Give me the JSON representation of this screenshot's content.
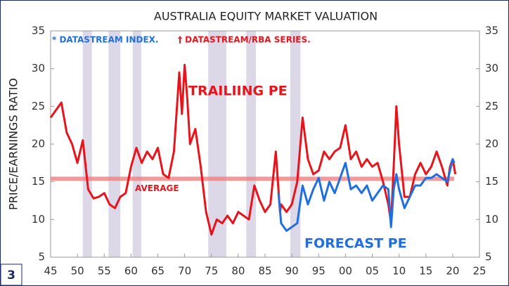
{
  "chart_data": {
    "type": "line",
    "title": "AUSTRALIA EQUITY MARKET VALUATION",
    "y_label": "PRICE/EARNINGS RATIO",
    "panel_label": "3",
    "annotations": {
      "forecast_note": "* DATASTREAM INDEX.",
      "trailing_note": "† DATASTREAM/RBA SERIES.",
      "trailing_label": "TRAILIING PE",
      "forecast_label": "FORECAST PE"
    },
    "xlim": [
      1945,
      2025
    ],
    "xticks": [
      {
        "value": 1945,
        "label": "45"
      },
      {
        "value": 1950,
        "label": "50"
      },
      {
        "value": 1955,
        "label": "55"
      },
      {
        "value": 1960,
        "label": "60"
      },
      {
        "value": 1965,
        "label": "65"
      },
      {
        "value": 1970,
        "label": "70"
      },
      {
        "value": 1975,
        "label": "75"
      },
      {
        "value": 1980,
        "label": "80"
      },
      {
        "value": 1985,
        "label": "85"
      },
      {
        "value": 1990,
        "label": "90"
      },
      {
        "value": 1995,
        "label": "95"
      },
      {
        "value": 2000,
        "label": "00"
      },
      {
        "value": 2005,
        "label": "05"
      },
      {
        "value": 2010,
        "label": "10"
      },
      {
        "value": 2015,
        "label": "15"
      },
      {
        "value": 2020,
        "label": "20"
      },
      {
        "value": 2025,
        "label": "25"
      }
    ],
    "ylim": [
      5,
      35
    ],
    "yticks": [
      5,
      10,
      15,
      20,
      25,
      30,
      35
    ],
    "y2lim": [
      5,
      35
    ],
    "y2ticks": [
      5,
      10,
      15,
      20,
      25,
      30,
      35
    ],
    "shaded_periods": [
      [
        1951,
        1952.7
      ],
      [
        1955.8,
        1958
      ],
      [
        1960.3,
        1961.9
      ],
      [
        1974.4,
        1977.8
      ],
      [
        1981.5,
        1983.3
      ],
      [
        1989.7,
        1991.6
      ]
    ],
    "shade_color": "#dcd8e8",
    "average": {
      "label": "AVERAGE",
      "value": 15.4,
      "color": "#f08080"
    },
    "series": [
      {
        "name": "TRAILIING PE",
        "color": "#e8131b",
        "x": [
          1945,
          1946,
          1947,
          1948,
          1949,
          1950,
          1951,
          1952,
          1953,
          1954,
          1955,
          1956,
          1957,
          1958,
          1959,
          1960,
          1961,
          1962,
          1963,
          1964,
          1965,
          1966,
          1967,
          1968,
          1969,
          1969.5,
          1970,
          1970.5,
          1971,
          1972,
          1973,
          1974,
          1975,
          1976,
          1977,
          1978,
          1979,
          1980,
          1981,
          1982,
          1983,
          1984,
          1985,
          1986,
          1987,
          1987.8,
          1988,
          1989,
          1990,
          1991,
          1992,
          1993,
          1994,
          1995,
          1996,
          1997,
          1998,
          1999,
          2000,
          2001,
          2002,
          2003,
          2004,
          2005,
          2006,
          2007,
          2008,
          2008.5,
          2009,
          2009.5,
          2010,
          2011,
          2012,
          2013,
          2014,
          2015,
          2016,
          2017,
          2018,
          2019,
          2019.5,
          2020,
          2020.5
        ],
        "values": [
          23.5,
          24.5,
          25.5,
          21.5,
          20,
          17.5,
          20.5,
          14,
          12.8,
          13,
          13.5,
          12,
          11.5,
          13,
          13.5,
          17,
          19.5,
          17.5,
          19,
          18,
          19.5,
          16,
          15.5,
          19,
          29.5,
          24,
          30.5,
          26,
          20,
          22,
          17,
          11,
          8,
          10,
          9.5,
          10.5,
          9.5,
          11,
          10.5,
          10,
          14.5,
          12.5,
          11,
          12,
          19,
          11,
          12,
          11,
          12,
          15,
          23.5,
          18,
          16,
          16.5,
          19,
          18,
          19,
          19.5,
          22.5,
          18,
          19,
          17,
          18,
          17,
          17.5,
          15,
          12,
          9.5,
          17,
          25,
          20,
          13,
          13,
          16,
          17.5,
          16,
          17,
          19,
          17,
          14.5,
          17,
          18,
          16
        ]
      },
      {
        "name": "FORECAST PE",
        "color": "#1f6fe0",
        "x": [
          1987.5,
          1988,
          1989,
          1990,
          1991,
          1992,
          1993,
          1994,
          1995,
          1996,
          1997,
          1998,
          1999,
          2000,
          2001,
          2002,
          2003,
          2004,
          2005,
          2006,
          2007,
          2008,
          2008.5,
          2009,
          2009.5,
          2010,
          2011,
          2012,
          2013,
          2014,
          2015,
          2016,
          2017,
          2018,
          2019,
          2019.5,
          2020,
          2020.3
        ],
        "values": [
          13.5,
          9.5,
          8.5,
          9,
          9.5,
          14.5,
          12,
          14,
          15.5,
          12.5,
          15,
          13.5,
          15.5,
          17.5,
          14,
          14.5,
          13.5,
          14.5,
          12.5,
          13.5,
          14.5,
          14,
          9,
          14,
          16,
          14,
          11.5,
          13,
          14.5,
          14.5,
          15.5,
          15.5,
          16,
          15.5,
          15,
          16.5,
          18,
          17.5
        ]
      }
    ]
  }
}
